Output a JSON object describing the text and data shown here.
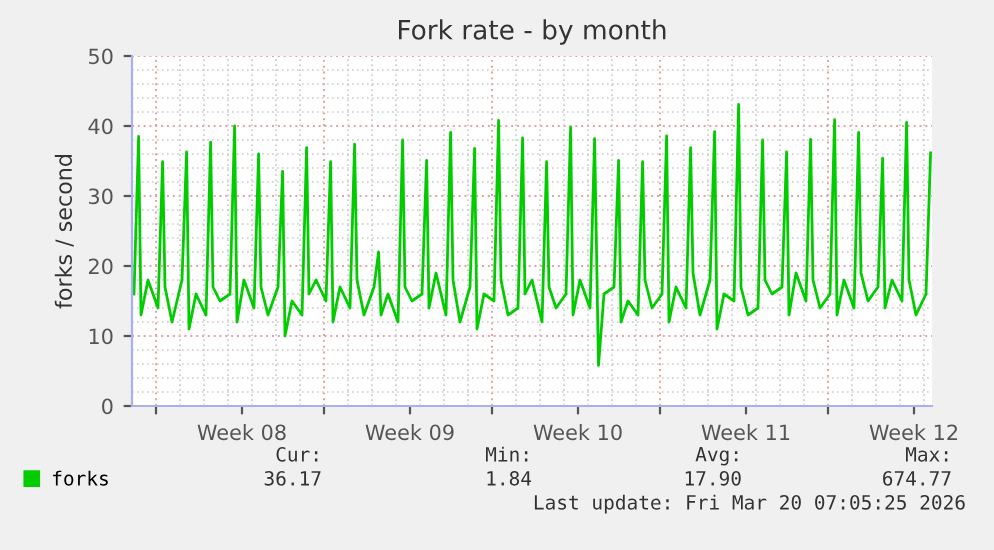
{
  "chart_data": {
    "type": "line",
    "title": "Fork rate - by month",
    "ylabel": "forks / second",
    "xlim": [
      "2026-02-15T00:00",
      "2026-03-20T08:00"
    ],
    "xticks": [
      {
        "value": "2026-02-16T00:00",
        "label": null
      },
      {
        "value": "2026-02-23T00:00",
        "label": null
      },
      {
        "value": "2026-03-02T00:00",
        "label": null
      },
      {
        "value": "2026-03-09T00:00",
        "label": null
      },
      {
        "value": "2026-03-16T00:00",
        "label": null
      },
      {
        "value": "2026-02-19T14:00",
        "label": "Week 08"
      },
      {
        "value": "2026-02-26T14:00",
        "label": "Week 09"
      },
      {
        "value": "2026-03-05T14:00",
        "label": "Week 10"
      },
      {
        "value": "2026-03-12T14:00",
        "label": "Week 11"
      },
      {
        "value": "2026-03-19T14:00",
        "label": "Week 12"
      }
    ],
    "ylim": [
      0,
      50
    ],
    "yticks": [
      0,
      10,
      20,
      30,
      40,
      50
    ],
    "grid": true,
    "legend": "bottom left",
    "marker": "none",
    "line_style": "solid",
    "annotations": [
      "Cur:",
      "Min:",
      "Avg:",
      "Max:",
      "36.17",
      "1.84",
      "17.90",
      "674.77",
      "Last update: Fri Mar 20 07:05:25 2026"
    ],
    "series": [
      {
        "name": "forks",
        "color": "#00cc00",
        "x": [
          "2026-02-15T02:00",
          "2026-02-15T06:36",
          "2026-02-15T09:00",
          "2026-02-15T16:00",
          "2026-02-16T02:00",
          "2026-02-16T06:36",
          "2026-02-16T09:00",
          "2026-02-16T16:00",
          "2026-02-17T02:00",
          "2026-02-17T06:36",
          "2026-02-17T09:00",
          "2026-02-17T16:00",
          "2026-02-18T02:00",
          "2026-02-18T06:36",
          "2026-02-18T09:00",
          "2026-02-18T16:00",
          "2026-02-19T02:00",
          "2026-02-19T06:36",
          "2026-02-19T09:00",
          "2026-02-19T16:00",
          "2026-02-20T02:00",
          "2026-02-20T06:36",
          "2026-02-20T09:00",
          "2026-02-20T16:00",
          "2026-02-21T02:00",
          "2026-02-21T06:36",
          "2026-02-21T09:00",
          "2026-02-21T16:00",
          "2026-02-22T02:00",
          "2026-02-22T06:36",
          "2026-02-22T09:00",
          "2026-02-22T16:00",
          "2026-02-23T02:00",
          "2026-02-23T06:36",
          "2026-02-23T09:00",
          "2026-02-23T16:00",
          "2026-02-24T02:00",
          "2026-02-24T06:36",
          "2026-02-24T09:00",
          "2026-02-24T16:00",
          "2026-02-25T02:00",
          "2026-02-25T06:36",
          "2026-02-25T09:00",
          "2026-02-25T16:00",
          "2026-02-26T02:00",
          "2026-02-26T06:36",
          "2026-02-26T09:00",
          "2026-02-26T16:00",
          "2026-02-27T02:00",
          "2026-02-27T06:36",
          "2026-02-27T09:00",
          "2026-02-27T16:00",
          "2026-02-28T02:00",
          "2026-02-28T06:36",
          "2026-02-28T09:00",
          "2026-02-28T16:00",
          "2026-03-01T02:00",
          "2026-03-01T06:36",
          "2026-03-01T09:00",
          "2026-03-01T16:00",
          "2026-03-02T02:00",
          "2026-03-02T06:36",
          "2026-03-02T09:00",
          "2026-03-02T16:00",
          "2026-03-03T02:00",
          "2026-03-03T06:36",
          "2026-03-03T09:00",
          "2026-03-03T16:00",
          "2026-03-04T02:00",
          "2026-03-04T06:36",
          "2026-03-04T09:00",
          "2026-03-04T16:00",
          "2026-03-05T02:00",
          "2026-03-05T06:36",
          "2026-03-05T09:00",
          "2026-03-05T16:00",
          "2026-03-06T02:00",
          "2026-03-06T06:36",
          "2026-03-06T10:30",
          "2026-03-06T16:00",
          "2026-03-07T02:00",
          "2026-03-07T06:36",
          "2026-03-07T09:00",
          "2026-03-07T16:00",
          "2026-03-08T02:00",
          "2026-03-08T06:36",
          "2026-03-08T09:00",
          "2026-03-08T16:00",
          "2026-03-09T02:00",
          "2026-03-09T06:36",
          "2026-03-09T09:00",
          "2026-03-09T16:00",
          "2026-03-10T02:00",
          "2026-03-10T06:36",
          "2026-03-10T09:00",
          "2026-03-10T16:00",
          "2026-03-11T02:00",
          "2026-03-11T06:36",
          "2026-03-11T09:00",
          "2026-03-11T16:00",
          "2026-03-12T02:00",
          "2026-03-12T06:36",
          "2026-03-12T09:00",
          "2026-03-12T16:00",
          "2026-03-13T02:00",
          "2026-03-13T06:36",
          "2026-03-13T09:00",
          "2026-03-13T16:00",
          "2026-03-14T02:00",
          "2026-03-14T06:36",
          "2026-03-14T09:00",
          "2026-03-14T16:00",
          "2026-03-15T02:00",
          "2026-03-15T06:36",
          "2026-03-15T09:00",
          "2026-03-15T16:00",
          "2026-03-16T02:00",
          "2026-03-16T06:36",
          "2026-03-16T09:00",
          "2026-03-16T16:00",
          "2026-03-17T02:00",
          "2026-03-17T06:36",
          "2026-03-17T09:00",
          "2026-03-17T16:00",
          "2026-03-18T02:00",
          "2026-03-18T06:36",
          "2026-03-18T09:00",
          "2026-03-18T16:00",
          "2026-03-19T02:00",
          "2026-03-19T06:36",
          "2026-03-19T09:00",
          "2026-03-19T16:00",
          "2026-03-20T02:00",
          "2026-03-20T06:36"
        ],
        "values": [
          16,
          38.5,
          13,
          18,
          14,
          34.9,
          17,
          12,
          18,
          36.3,
          11,
          16,
          13,
          37.7,
          17,
          15,
          16,
          40,
          12,
          18,
          14,
          36,
          17,
          13,
          17,
          33.5,
          10,
          15,
          13,
          36.9,
          16,
          18,
          15,
          34.9,
          12,
          17,
          14,
          37.4,
          18,
          13,
          17,
          22,
          13,
          16,
          12,
          38,
          17,
          15,
          16,
          35.1,
          14,
          19,
          13,
          39.1,
          18,
          12,
          17,
          36.8,
          11,
          16,
          15,
          40.8,
          18,
          13,
          14,
          38.3,
          16,
          18,
          12,
          34.9,
          17,
          14,
          16,
          39.8,
          13,
          18,
          14,
          38.2,
          5.8,
          16,
          17,
          35.1,
          12,
          15,
          13,
          34.9,
          18,
          14,
          16,
          38.6,
          12,
          17,
          14,
          36.9,
          19,
          13,
          18,
          39.2,
          11,
          16,
          15,
          43.1,
          17,
          13,
          14,
          38,
          18,
          16,
          17,
          36.3,
          13,
          19,
          15,
          38.1,
          18,
          14,
          16,
          40.9,
          13,
          18,
          14,
          39.1,
          19,
          15,
          17,
          35.4,
          14,
          18,
          15,
          40.5,
          18,
          13,
          16,
          36.17
        ]
      }
    ]
  }
}
